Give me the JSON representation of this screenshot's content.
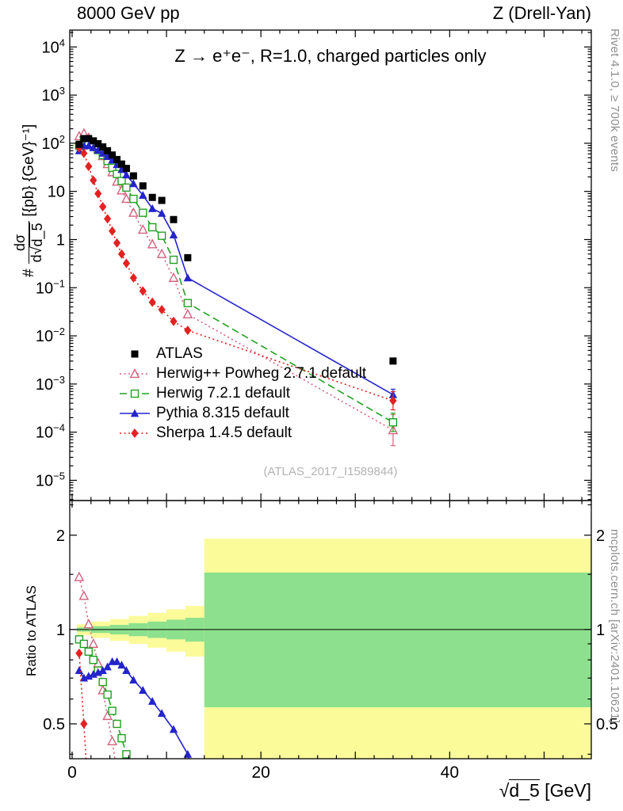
{
  "header": {
    "left": "8000 GeV pp",
    "right": "Z (Drell-Yan)"
  },
  "side_notes": {
    "top": "Rivet 4.1.0, ≥ 700k events",
    "bottom": "mcplots.cern.ch [arXiv:2401.10621]"
  },
  "labels": {
    "y_prefix": "#",
    "y_num": "dσ",
    "y_den_pre": "d√",
    "y_den_arg": "d_5",
    "y_units": "[{pb} {GeV}⁻¹]",
    "ratio": "Ratio to ATLAS",
    "x_radical": "√",
    "x_arg": "d_5",
    "x_unit": " [GeV]"
  },
  "legend": {
    "items": [
      {
        "label": "ATLAS",
        "series": 4
      },
      {
        "label": "Herwig++ Powheg 2.7.1 default",
        "series": 0
      },
      {
        "label": "Herwig 7.2.1 default",
        "series": 1
      },
      {
        "label": "Pythia 8.315 default",
        "series": 2
      },
      {
        "label": "Sherpa 1.4.5 default",
        "series": 3
      }
    ]
  },
  "chart_data": {
    "type": "line",
    "title": "Z → e⁺e⁻, R=1.0, charged particles only",
    "watermark": "(ATLAS_2017_I1589844)",
    "xlabel": "√d_5 [GeV]",
    "ylabel": "# dσ/d√d_5 [{pb} {GeV}⁻¹]",
    "ylabel_ratio": "Ratio to ATLAS",
    "x_axis": {
      "min": -0.25,
      "max": 55,
      "ticks_labeled": [
        0,
        20,
        40
      ],
      "ticks_medium": [
        10,
        30,
        50
      ],
      "minor_step": 2
    },
    "y_axis_main": {
      "scale": "log",
      "exp_min": -5,
      "exp_max": 4,
      "top_exp": 4.35,
      "bottom_exp": -5.42
    },
    "y_axis_ratio": {
      "scale": "log",
      "min": 0.387,
      "max": 2.58,
      "ticks": [
        0.5,
        1,
        2
      ],
      "minor": [
        0.4,
        0.6,
        0.7,
        0.8,
        0.9,
        1.5,
        2.5
      ]
    },
    "bands": {
      "yellow_color": "#fbfb9a",
      "green_color": "#8de08d",
      "yellow": [
        [
          0.5,
          2,
          0.96,
          1.04
        ],
        [
          2,
          4,
          0.94,
          1.06
        ],
        [
          4,
          6,
          0.92,
          1.08
        ],
        [
          6,
          8,
          0.9,
          1.105
        ],
        [
          8,
          10,
          0.875,
          1.13
        ],
        [
          10,
          12,
          0.85,
          1.16
        ],
        [
          12,
          14,
          0.82,
          1.19
        ],
        [
          14,
          55,
          0.38,
          1.95
        ]
      ],
      "green": [
        [
          0.5,
          2,
          0.985,
          1.015
        ],
        [
          2,
          4,
          0.975,
          1.025
        ],
        [
          4,
          6,
          0.965,
          1.035
        ],
        [
          6,
          8,
          0.952,
          1.048
        ],
        [
          8,
          10,
          0.94,
          1.06
        ],
        [
          10,
          12,
          0.93,
          1.075
        ],
        [
          12,
          14,
          0.915,
          1.09
        ],
        [
          14,
          55,
          0.565,
          1.52
        ]
      ]
    },
    "series": [
      {
        "id": "herwigpp-powheg",
        "label": "Herwig++ Powheg 2.7.1 default",
        "color": "#d4627e",
        "line": "dotted",
        "marker": "triangle-open",
        "points": [
          [
            0.75,
            140
          ],
          [
            1.25,
            160
          ],
          [
            1.75,
            130
          ],
          [
            2.25,
            100
          ],
          [
            2.75,
            76
          ],
          [
            3.25,
            54
          ],
          [
            3.75,
            37
          ],
          [
            4.25,
            25
          ],
          [
            4.75,
            16
          ],
          [
            5.25,
            10.5
          ],
          [
            5.75,
            7.0
          ],
          [
            6.5,
            3.6
          ],
          [
            7.5,
            1.6
          ],
          [
            8.5,
            0.8
          ],
          [
            9.5,
            0.5
          ],
          [
            10.75,
            0.16
          ],
          [
            12.25,
            0.028
          ],
          [
            34,
            0.00011,
            2.1
          ]
        ],
        "ratio_points": [
          [
            0.75,
            1.47
          ],
          [
            1.25,
            1.28
          ],
          [
            1.75,
            1.04
          ],
          [
            2.25,
            0.9
          ],
          [
            2.75,
            0.78
          ],
          [
            3.25,
            0.64
          ],
          [
            3.75,
            0.53
          ],
          [
            4.25,
            0.44
          ],
          [
            4.75,
            0.35
          ],
          [
            5.25,
            0.27
          ]
        ]
      },
      {
        "id": "herwig7",
        "label": "Herwig 7.2.1 default",
        "color": "#22a022",
        "line": "dashed",
        "marker": "square-open",
        "points": [
          [
            0.75,
            88
          ],
          [
            1.25,
            112
          ],
          [
            1.75,
            106
          ],
          [
            2.25,
            90
          ],
          [
            2.75,
            72
          ],
          [
            3.25,
            57
          ],
          [
            3.75,
            43
          ],
          [
            4.25,
            31
          ],
          [
            4.75,
            23
          ],
          [
            5.25,
            16.5
          ],
          [
            5.75,
            12
          ],
          [
            6.5,
            7.0
          ],
          [
            7.5,
            3.6
          ],
          [
            8.5,
            1.8
          ],
          [
            9.5,
            1.2
          ],
          [
            10.75,
            0.38
          ],
          [
            12.25,
            0.048
          ],
          [
            34,
            0.00016,
            1.55
          ]
        ],
        "ratio_points": [
          [
            0.75,
            0.93
          ],
          [
            1.25,
            0.9
          ],
          [
            1.75,
            0.85
          ],
          [
            2.25,
            0.8
          ],
          [
            2.75,
            0.74
          ],
          [
            3.25,
            0.68
          ],
          [
            3.75,
            0.62
          ],
          [
            4.25,
            0.55
          ],
          [
            4.75,
            0.5
          ],
          [
            5.25,
            0.45
          ],
          [
            5.75,
            0.4
          ],
          [
            6.5,
            0.33
          ],
          [
            7.2,
            0.25
          ]
        ]
      },
      {
        "id": "pythia8",
        "label": "Pythia 8.315 default",
        "color": "#2424cc",
        "line": "solid",
        "marker": "triangle-filled",
        "points": [
          [
            0.75,
            70
          ],
          [
            1.25,
            87.5
          ],
          [
            1.75,
            89
          ],
          [
            2.25,
            81
          ],
          [
            2.75,
            72
          ],
          [
            3.25,
            62
          ],
          [
            3.75,
            53
          ],
          [
            4.25,
            45
          ],
          [
            4.75,
            36
          ],
          [
            5.25,
            28.5
          ],
          [
            5.75,
            22
          ],
          [
            6.5,
            14.5
          ],
          [
            7.5,
            8.3
          ],
          [
            8.5,
            4.4
          ],
          [
            9.5,
            3.5
          ],
          [
            10.75,
            1.25
          ],
          [
            12.25,
            0.16
          ],
          [
            34,
            0.0006,
            1.3
          ]
        ],
        "ratio_points": [
          [
            0.75,
            0.74
          ],
          [
            1.25,
            0.7
          ],
          [
            1.75,
            0.71
          ],
          [
            2.25,
            0.72
          ],
          [
            2.75,
            0.73
          ],
          [
            3.25,
            0.74
          ],
          [
            3.75,
            0.76
          ],
          [
            4.25,
            0.79
          ],
          [
            4.75,
            0.79
          ],
          [
            5.25,
            0.77
          ],
          [
            5.75,
            0.74
          ],
          [
            6.5,
            0.69
          ],
          [
            7.5,
            0.64
          ],
          [
            8.5,
            0.59
          ],
          [
            9.5,
            0.54
          ],
          [
            10.75,
            0.48
          ],
          [
            12.25,
            0.4
          ],
          [
            13.5,
            0.27
          ]
        ]
      },
      {
        "id": "sherpa",
        "label": "Sherpa 1.4.5 default",
        "color": "#e22222",
        "line": "dotted",
        "marker": "diamond-filled",
        "points": [
          [
            0.75,
            80
          ],
          [
            1.25,
            62
          ],
          [
            1.75,
            33
          ],
          [
            2.25,
            17
          ],
          [
            2.75,
            9
          ],
          [
            3.25,
            4.8
          ],
          [
            3.75,
            2.7
          ],
          [
            4.25,
            1.5
          ],
          [
            4.75,
            0.85
          ],
          [
            5.25,
            0.5
          ],
          [
            5.75,
            0.32
          ],
          [
            6.5,
            0.16
          ],
          [
            7.5,
            0.085
          ],
          [
            8.5,
            0.05
          ],
          [
            9.5,
            0.035
          ],
          [
            10.75,
            0.02
          ],
          [
            12.25,
            0.013
          ],
          [
            34,
            0.00045,
            1.55
          ]
        ],
        "ratio_points": [
          [
            0.75,
            0.84
          ],
          [
            1.25,
            0.5
          ],
          [
            1.75,
            0.28
          ]
        ]
      },
      {
        "id": "atlas",
        "label": "ATLAS",
        "color": "#000000",
        "line": "none",
        "marker": "square-filled",
        "points": [
          [
            0.75,
            95
          ],
          [
            1.25,
            125
          ],
          [
            1.75,
            125
          ],
          [
            2.25,
            112
          ],
          [
            2.75,
            98
          ],
          [
            3.25,
            84
          ],
          [
            3.75,
            70
          ],
          [
            4.25,
            57
          ],
          [
            4.75,
            46
          ],
          [
            5.25,
            37
          ],
          [
            5.75,
            30
          ],
          [
            6.5,
            21
          ],
          [
            7.5,
            13
          ],
          [
            8.5,
            7.5
          ],
          [
            9.5,
            6.5
          ],
          [
            10.75,
            2.6
          ],
          [
            12.25,
            0.42
          ],
          [
            34,
            0.003
          ]
        ],
        "ratio_points": []
      }
    ]
  }
}
